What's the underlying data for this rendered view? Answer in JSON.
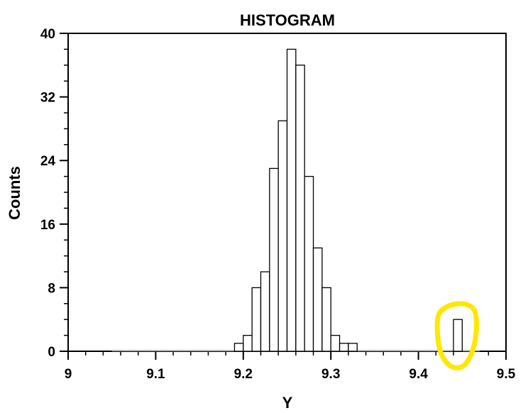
{
  "chart_data": {
    "type": "bar",
    "title": "HISTOGRAM",
    "xlabel": "Y",
    "ylabel": "Counts",
    "xlim": [
      9.0,
      9.5
    ],
    "ylim": [
      0,
      40
    ],
    "x_ticks": [
      "9",
      "9.1",
      "9.2",
      "9.3",
      "9.4",
      "9.5"
    ],
    "y_ticks": [
      "0",
      "8",
      "16",
      "24",
      "32",
      "40"
    ],
    "bin_width": 0.01,
    "bins": [
      {
        "start": 9.19,
        "count": 1
      },
      {
        "start": 9.2,
        "count": 2
      },
      {
        "start": 9.21,
        "count": 8
      },
      {
        "start": 9.22,
        "count": 10
      },
      {
        "start": 9.23,
        "count": 23
      },
      {
        "start": 9.24,
        "count": 29
      },
      {
        "start": 9.25,
        "count": 38
      },
      {
        "start": 9.26,
        "count": 36
      },
      {
        "start": 9.27,
        "count": 22
      },
      {
        "start": 9.28,
        "count": 13
      },
      {
        "start": 9.29,
        "count": 8
      },
      {
        "start": 9.3,
        "count": 2
      },
      {
        "start": 9.31,
        "count": 1
      },
      {
        "start": 9.32,
        "count": 1
      },
      {
        "start": 9.44,
        "count": 4
      }
    ],
    "grid": false,
    "highlight": {
      "shape": "ellipse",
      "color": "#FFE800",
      "around_bin_start": 9.44
    }
  }
}
